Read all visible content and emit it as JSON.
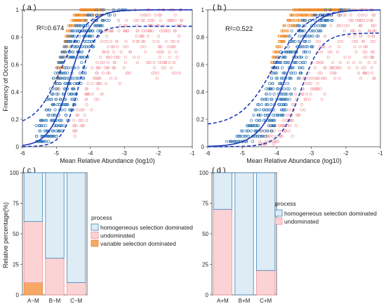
{
  "colors": {
    "hs_fill": "#deecf6",
    "hs_stroke": "#3c83b8",
    "und_fill": "#fcd3d5",
    "und_stroke": "#f08f95",
    "var_fill": "#f6a867",
    "var_stroke": "#e8833a",
    "fit_line": "#1c39b9",
    "pt_blue": "#2f74b3",
    "pt_orange": "#ee8a2a",
    "pt_pink": "#f29aa2",
    "frame": "#444444"
  },
  "chart_data": [
    {
      "type": "scatter",
      "panel_label": "( a )",
      "annotation": "R²=0.674",
      "xlabel": "Mean Relative Abundance (log10)",
      "ylabel": "Freuency of Occurence",
      "xlim": [
        -6,
        -1
      ],
      "ylim": [
        0,
        1
      ],
      "xticks": [
        "-6",
        "-5",
        "-4",
        "-3",
        "-2",
        "-1"
      ],
      "yticks": [
        "0",
        "0.2",
        "0.4",
        "0.6",
        "0.8",
        "1"
      ],
      "fit": {
        "midpoint": -4.6,
        "slope": 3.3,
        "ci_upper_mid": -4.85,
        "ci_lower_mid": -4.35,
        "lower_plateau": 0.88
      },
      "points": {
        "blue_range": [
          -5.6,
          -3.7
        ],
        "orange_range": [
          -5.0,
          -3.6
        ],
        "pink_range": [
          -4.5,
          -1.3
        ]
      }
    },
    {
      "type": "scatter",
      "panel_label": "( b )",
      "annotation": "R²=0.522",
      "xlabel": "Mean Relative Abundance (log10)",
      "xlim": [
        -6,
        -1
      ],
      "ylim": [
        0,
        1
      ],
      "xticks": [
        "-6",
        "-5",
        "-4",
        "-3",
        "-2",
        "-1"
      ],
      "yticks": [
        "0",
        "0.2",
        "0.4",
        "0.6",
        "0.8",
        "1"
      ],
      "fit": {
        "midpoint": -3.75,
        "slope": 2.6,
        "ci_upper_mid": -4.1,
        "ci_lower_mid": -3.3,
        "lower_plateau": 0.83
      },
      "points": {
        "blue_range": [
          -6.0,
          -2.5
        ],
        "orange_range": [
          -4.2,
          -2.0
        ],
        "pink_range": [
          -4.5,
          -1.1
        ]
      }
    },
    {
      "type": "bar",
      "stacked": true,
      "panel_label": "( c )",
      "ylabel": "Relative percentage(%)",
      "categories": [
        "A~M",
        "B~M",
        "C~M"
      ],
      "ylim": [
        0,
        100
      ],
      "yticks": [
        "0",
        "25",
        "50",
        "75",
        "100"
      ],
      "legend_title": "process",
      "legend_position": "right",
      "series": [
        {
          "name": "variable selection dominated",
          "values": [
            10,
            0,
            0
          ]
        },
        {
          "name": "undominated",
          "values": [
            50,
            30,
            10
          ]
        },
        {
          "name": "homogeneous selection dominated",
          "values": [
            40,
            70,
            90
          ]
        }
      ]
    },
    {
      "type": "bar",
      "stacked": true,
      "panel_label": "( d )",
      "categories": [
        "A+M",
        "B+M",
        "C+M"
      ],
      "ylim": [
        0,
        100
      ],
      "yticks": [
        "0",
        "25",
        "50",
        "75",
        "100"
      ],
      "legend_title": "process",
      "legend_position": "right",
      "series": [
        {
          "name": "undominated",
          "values": [
            70,
            0,
            20
          ]
        },
        {
          "name": "homogeneous selection dominated",
          "values": [
            30,
            100,
            80
          ]
        }
      ]
    }
  ]
}
